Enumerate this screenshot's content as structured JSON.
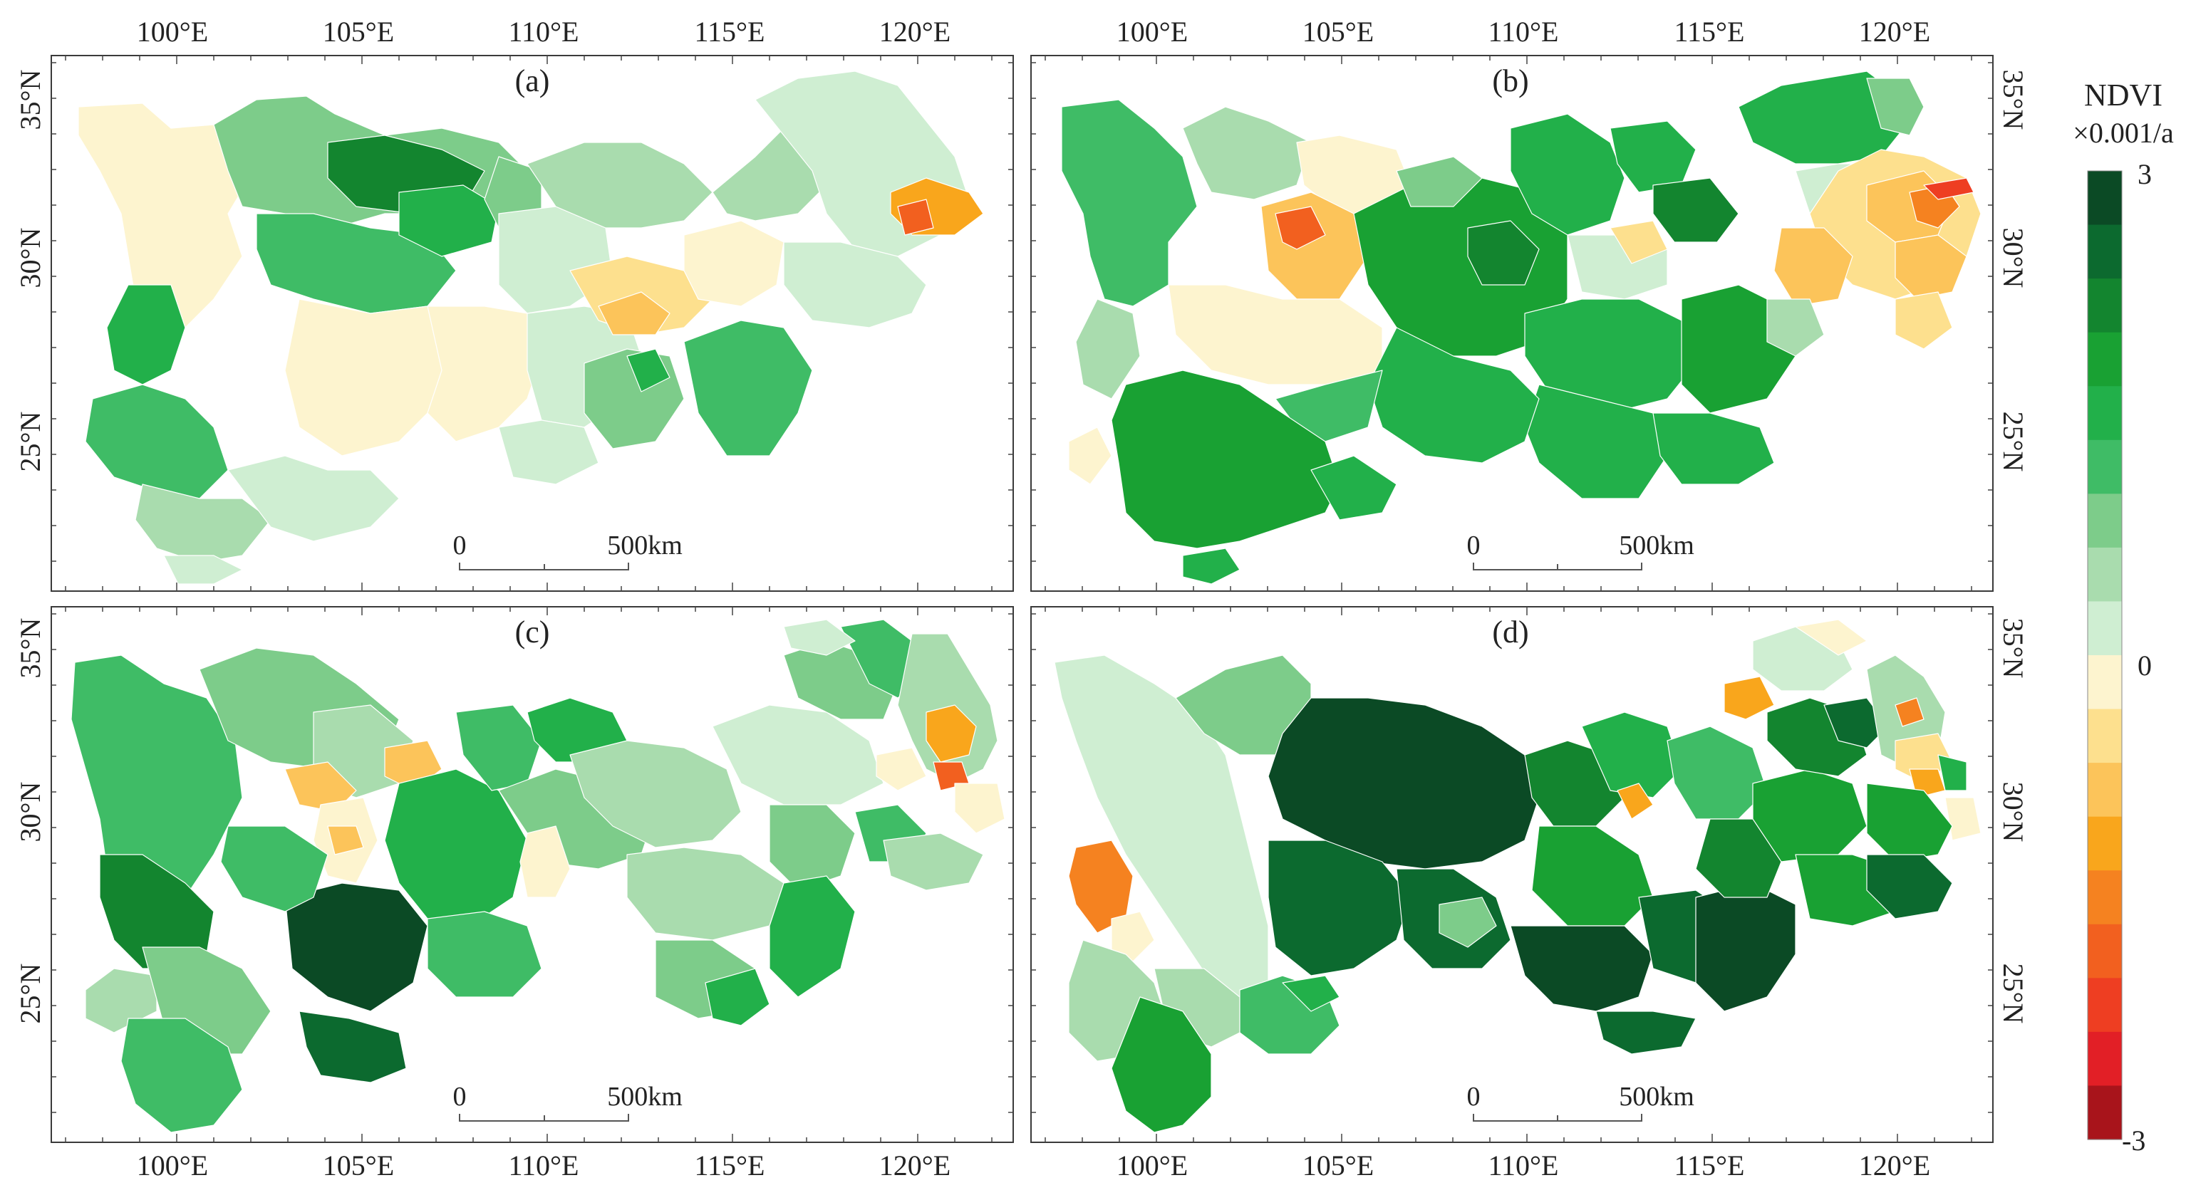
{
  "figure": {
    "panels": [
      {
        "label": "(a)"
      },
      {
        "label": "(b)"
      },
      {
        "label": "(c)"
      },
      {
        "label": "(d)"
      }
    ],
    "axes": {
      "lon_labels": [
        "100°E",
        "105°E",
        "110°E",
        "115°E",
        "120°E"
      ],
      "lat_labels": [
        "35°N",
        "30°N",
        "25°N"
      ]
    },
    "scale_bar": {
      "start": "0",
      "end": "500km"
    },
    "legend": {
      "title_line1": "NDVI",
      "title_line2": "×0.001/a",
      "max_label": "3",
      "mid_label": "0",
      "min_label": "-3",
      "colors": [
        "#0b4a25",
        "#0c6a2f",
        "#13852f",
        "#19a133",
        "#22b04a",
        "#3fbc66",
        "#7dcc8a",
        "#a9dcae",
        "#cfeed2",
        "#fdf4cf",
        "#fde08e",
        "#fcc45a",
        "#f9a61c",
        "#f58220",
        "#f2601f",
        "#ee3e22",
        "#e21f26",
        "#a8141b"
      ]
    }
  }
}
